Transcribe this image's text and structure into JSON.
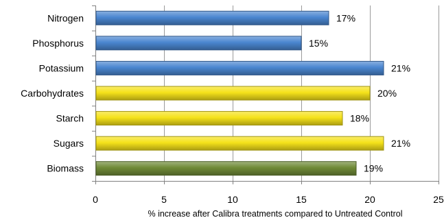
{
  "chart_data": {
    "type": "bar",
    "orientation": "horizontal",
    "categories": [
      "Nitrogen",
      "Phosphorus",
      "Potassium",
      "Carbohydrates",
      "Starch",
      "Sugars",
      "Biomass"
    ],
    "values": [
      17,
      15,
      21,
      20,
      18,
      21,
      19
    ],
    "data_labels": [
      "17%",
      "15%",
      "21%",
      "20%",
      "18%",
      "21%",
      "19%"
    ],
    "bar_colors": [
      "#4a86d0",
      "#4a86d0",
      "#4a86d0",
      "#f5e21a",
      "#f5e21a",
      "#f5e21a",
      "#6f8a37"
    ],
    "xlabel": "% increase after Calibra treatments compared to Untreated Control",
    "ylabel": "",
    "title": "",
    "xlim": [
      0,
      25
    ],
    "xticks": [
      0,
      5,
      10,
      15,
      20,
      25
    ],
    "xtick_labels": [
      "0",
      "5",
      "10",
      "15",
      "20",
      "25"
    ],
    "grid": "vertical major gridlines",
    "legend": "none"
  }
}
